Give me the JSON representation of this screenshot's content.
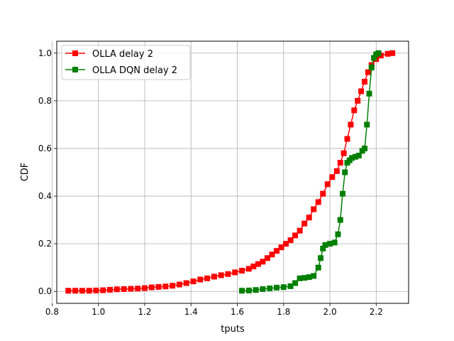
{
  "chart_data": {
    "type": "line",
    "title": "",
    "xlabel": "tputs",
    "ylabel": "CDF",
    "xlim": [
      0.82,
      2.34
    ],
    "ylim": [
      -0.05,
      1.05
    ],
    "xticks": [
      0.8,
      1.0,
      1.2,
      1.4,
      1.6,
      1.8,
      2.0,
      2.2
    ],
    "xtick_labels": [
      "0.8",
      "1.0",
      "1.2",
      "1.4",
      "1.6",
      "1.8",
      "2.0",
      "2.2"
    ],
    "yticks": [
      0.0,
      0.2,
      0.4,
      0.6,
      0.8,
      1.0
    ],
    "ytick_labels": [
      "0.0",
      "0.2",
      "0.4",
      "0.6",
      "0.8",
      "1.0"
    ],
    "grid": true,
    "legend_position": "upper-left",
    "marker": "square",
    "series": [
      {
        "name": "OLLA delay 2",
        "color": "#ff0000",
        "x": [
          0.87,
          0.9,
          0.93,
          0.96,
          0.99,
          1.02,
          1.05,
          1.08,
          1.11,
          1.14,
          1.17,
          1.2,
          1.23,
          1.26,
          1.29,
          1.32,
          1.35,
          1.38,
          1.41,
          1.44,
          1.47,
          1.5,
          1.53,
          1.56,
          1.59,
          1.62,
          1.65,
          1.67,
          1.69,
          1.71,
          1.73,
          1.75,
          1.77,
          1.79,
          1.81,
          1.83,
          1.85,
          1.87,
          1.89,
          1.91,
          1.93,
          1.95,
          1.97,
          1.99,
          2.01,
          2.03,
          2.045,
          2.06,
          2.075,
          2.09,
          2.105,
          2.12,
          2.135,
          2.15,
          2.165,
          2.18,
          2.2,
          2.22,
          2.25,
          2.27
        ],
        "y": [
          0.003,
          0.003,
          0.003,
          0.003,
          0.004,
          0.005,
          0.007,
          0.009,
          0.01,
          0.011,
          0.012,
          0.014,
          0.017,
          0.019,
          0.021,
          0.024,
          0.029,
          0.035,
          0.042,
          0.05,
          0.055,
          0.062,
          0.068,
          0.073,
          0.08,
          0.087,
          0.095,
          0.105,
          0.115,
          0.125,
          0.14,
          0.155,
          0.17,
          0.185,
          0.2,
          0.215,
          0.235,
          0.255,
          0.285,
          0.31,
          0.345,
          0.375,
          0.41,
          0.45,
          0.48,
          0.505,
          0.54,
          0.58,
          0.64,
          0.7,
          0.76,
          0.8,
          0.84,
          0.88,
          0.92,
          0.95,
          0.975,
          0.99,
          0.997,
          1.0
        ]
      },
      {
        "name": "OLLA DQN delay 2",
        "color": "#008000",
        "x": [
          1.62,
          1.65,
          1.68,
          1.71,
          1.74,
          1.77,
          1.8,
          1.83,
          1.85,
          1.87,
          1.89,
          1.91,
          1.93,
          1.95,
          1.96,
          1.97,
          1.98,
          2.0,
          2.02,
          2.035,
          2.045,
          2.055,
          2.065,
          2.075,
          2.085,
          2.095,
          2.11,
          2.125,
          2.14,
          2.15,
          2.16,
          2.17,
          2.18,
          2.19,
          2.2,
          2.21
        ],
        "y": [
          0.003,
          0.004,
          0.006,
          0.01,
          0.013,
          0.016,
          0.018,
          0.022,
          0.035,
          0.055,
          0.057,
          0.06,
          0.065,
          0.1,
          0.14,
          0.18,
          0.195,
          0.2,
          0.205,
          0.24,
          0.3,
          0.41,
          0.5,
          0.54,
          0.55,
          0.56,
          0.565,
          0.57,
          0.59,
          0.6,
          0.7,
          0.83,
          0.94,
          0.98,
          0.995,
          1.0
        ]
      }
    ]
  }
}
